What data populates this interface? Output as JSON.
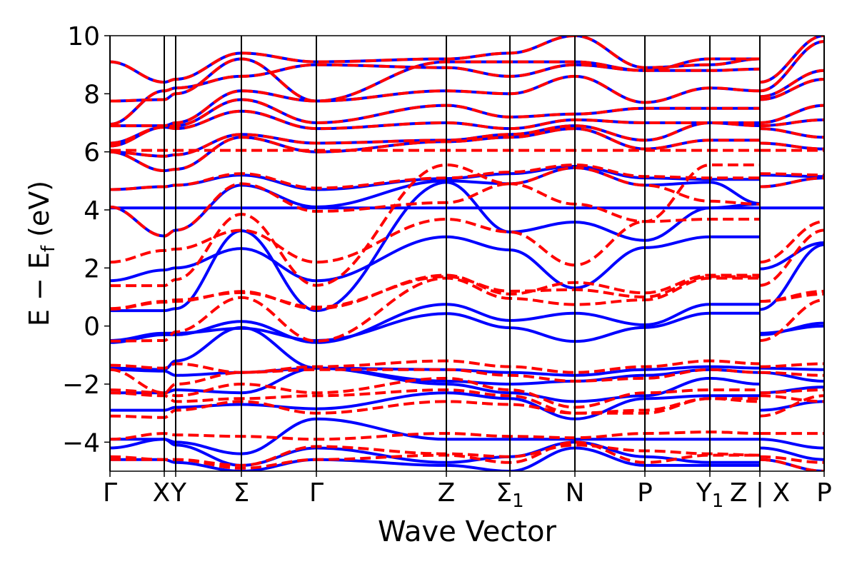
{
  "chart_data": {
    "type": "line",
    "title": "",
    "xlabel": "Wave Vector",
    "ylabel": "E − E",
    "ylabel_sub": "f",
    "ylabel_unit": " (eV)",
    "ylim": [
      -5,
      10
    ],
    "yticks": [
      -4,
      -2,
      0,
      2,
      4,
      6,
      8,
      10
    ],
    "ytick_labels": [
      "−4",
      "−2",
      "0",
      "2",
      "4",
      "6",
      "8",
      "10"
    ],
    "kpoints": [
      0,
      0.76,
      0.92,
      1.84,
      2.89,
      4.71,
      5.6,
      6.51,
      7.49,
      8.4,
      9.1,
      9.1,
      10.0
    ],
    "path_break_after_index": 10,
    "xticks": [
      {
        "k": 0,
        "text": "Γ",
        "sub": ""
      },
      {
        "k": 0.76,
        "text": "X",
        "sub": ""
      },
      {
        "k": 0.92,
        "text": "Y",
        "sub": ""
      },
      {
        "k": 1.84,
        "text": "Σ",
        "sub": ""
      },
      {
        "k": 2.89,
        "text": "Γ",
        "sub": ""
      },
      {
        "k": 4.71,
        "text": "Z",
        "sub": ""
      },
      {
        "k": 5.6,
        "text": "Σ",
        "sub": "1"
      },
      {
        "k": 6.51,
        "text": "N",
        "sub": ""
      },
      {
        "k": 7.49,
        "text": "P",
        "sub": ""
      },
      {
        "k": 8.4,
        "text": "Y",
        "sub": "1"
      },
      {
        "k": 9.1,
        "text": "Z | X",
        "sub": ""
      },
      {
        "k": 10.0,
        "text": "P",
        "sub": ""
      }
    ],
    "series": [
      {
        "name": "blue-solid",
        "color": "#0000ff",
        "style": "solid",
        "bands": [
          [
            9.1,
            8.4,
            8.5,
            9.4,
            9.1,
            9.2,
            9.4,
            10.0,
            8.9,
            9.0,
            9.2,
            8.4,
            10.0
          ],
          [
            7.75,
            7.8,
            8.0,
            9.2,
            7.75,
            9.1,
            9.1,
            9.1,
            8.8,
            9.2,
            9.2,
            8.1,
            9.8
          ],
          [
            6.95,
            8.1,
            8.2,
            8.6,
            9.0,
            8.9,
            8.6,
            9.0,
            8.8,
            8.8,
            8.85,
            7.9,
            8.8
          ],
          [
            6.9,
            6.9,
            7.0,
            8.1,
            7.75,
            8.1,
            8.0,
            8.6,
            7.7,
            8.2,
            8.1,
            7.8,
            8.5
          ],
          [
            6.3,
            6.85,
            6.9,
            7.8,
            7.0,
            7.6,
            7.2,
            7.3,
            7.5,
            7.5,
            7.5,
            7.0,
            7.6
          ],
          [
            6.2,
            6.85,
            6.8,
            7.4,
            6.8,
            7.0,
            6.8,
            7.1,
            7.0,
            7.0,
            7.0,
            6.9,
            7.1
          ],
          [
            6.0,
            5.85,
            5.9,
            6.6,
            6.3,
            6.4,
            6.6,
            6.9,
            6.4,
            7.0,
            6.9,
            6.8,
            6.5
          ],
          [
            6.0,
            5.35,
            5.4,
            6.5,
            6.0,
            6.35,
            6.5,
            6.8,
            6.1,
            6.4,
            6.4,
            6.3,
            6.1
          ],
          [
            4.7,
            4.8,
            4.85,
            5.2,
            4.7,
            5.08,
            5.25,
            5.5,
            5.1,
            5.05,
            5.05,
            5.2,
            5.15
          ],
          [
            4.1,
            3.1,
            3.3,
            4.85,
            4.1,
            5.0,
            4.9,
            5.45,
            4.85,
            4.95,
            4.22,
            4.8,
            5.1
          ],
          [
            4.07,
            4.07,
            4.07,
            4.07,
            4.07,
            4.07,
            4.07,
            4.07,
            4.07,
            4.07,
            4.07,
            4.07,
            4.07
          ],
          [
            1.56,
            1.93,
            2.0,
            2.67,
            1.56,
            3.07,
            2.62,
            1.31,
            2.7,
            3.07,
            3.07,
            1.97,
            2.87
          ],
          [
            0.53,
            0.53,
            0.6,
            3.28,
            0.53,
            4.95,
            3.24,
            3.58,
            2.95,
            4.07,
            4.2,
            0.57,
            2.8
          ],
          [
            -0.57,
            -0.3,
            -0.3,
            0.16,
            -0.57,
            0.75,
            0.19,
            0.44,
            0.04,
            0.75,
            0.75,
            -0.3,
            0.1
          ],
          [
            -0.5,
            -0.25,
            -0.25,
            -0.08,
            -0.5,
            0.43,
            -0.06,
            -0.53,
            -0.05,
            0.44,
            0.44,
            -0.25,
            0.0
          ],
          [
            -1.45,
            -1.5,
            -1.2,
            -0.05,
            -1.45,
            -1.5,
            -1.6,
            -1.7,
            -1.5,
            -1.4,
            -1.45,
            -1.45,
            -1.5
          ],
          [
            -1.5,
            -1.55,
            -1.7,
            -1.6,
            -1.45,
            -1.9,
            -2.0,
            -1.9,
            -1.7,
            -1.5,
            -1.6,
            -1.6,
            -1.9
          ],
          [
            -2.3,
            -2.3,
            -2.2,
            -2.3,
            -1.45,
            -2.0,
            -2.3,
            -2.6,
            -2.4,
            -1.8,
            -2.0,
            -2.3,
            -2.1
          ],
          [
            -2.9,
            -2.9,
            -2.8,
            -2.7,
            -2.85,
            -2.3,
            -2.5,
            -3.2,
            -2.5,
            -2.4,
            -2.4,
            -2.9,
            -2.6
          ],
          [
            -3.9,
            -3.9,
            -4.0,
            -4.4,
            -3.2,
            -3.9,
            -3.9,
            -3.9,
            -3.9,
            -3.9,
            -3.9,
            -3.9,
            -4.2
          ],
          [
            -4.2,
            -3.9,
            -4.1,
            -4.8,
            -4.2,
            -4.7,
            -4.5,
            -4.0,
            -4.5,
            -4.7,
            -4.7,
            -4.2,
            -4.6
          ],
          [
            -4.6,
            -4.6,
            -4.7,
            -5.0,
            -4.6,
            -4.8,
            -5.0,
            -4.2,
            -4.8,
            -4.8,
            -4.8,
            -4.6,
            -5.0
          ]
        ]
      },
      {
        "name": "red-dashed",
        "color": "#ff0000",
        "style": "dashed",
        "bands": [
          [
            9.1,
            8.4,
            8.5,
            9.4,
            9.1,
            9.2,
            9.4,
            10.0,
            8.9,
            9.0,
            9.2,
            8.4,
            10.0
          ],
          [
            7.75,
            7.8,
            8.0,
            9.2,
            7.75,
            9.1,
            9.1,
            9.1,
            8.8,
            9.2,
            9.2,
            8.1,
            9.8
          ],
          [
            6.95,
            8.1,
            8.2,
            8.6,
            9.0,
            8.9,
            8.6,
            9.0,
            8.8,
            8.8,
            8.85,
            7.9,
            8.8
          ],
          [
            6.9,
            6.9,
            7.0,
            8.1,
            7.75,
            8.1,
            8.0,
            8.6,
            7.7,
            8.2,
            8.1,
            7.8,
            8.5
          ],
          [
            6.3,
            6.85,
            6.9,
            7.8,
            7.0,
            7.6,
            7.2,
            7.3,
            7.5,
            7.5,
            7.5,
            7.0,
            7.6
          ],
          [
            6.2,
            6.85,
            6.8,
            7.4,
            6.8,
            7.0,
            6.8,
            7.1,
            7.0,
            7.0,
            7.0,
            6.9,
            7.1
          ],
          [
            6.0,
            5.85,
            5.9,
            6.6,
            6.3,
            6.4,
            6.6,
            6.9,
            6.4,
            7.0,
            6.9,
            6.8,
            6.5
          ],
          [
            6.0,
            5.35,
            5.4,
            6.5,
            6.0,
            6.35,
            6.5,
            6.8,
            6.1,
            6.4,
            6.4,
            6.3,
            6.1
          ],
          [
            6.05,
            6.05,
            6.05,
            6.05,
            6.05,
            6.05,
            6.05,
            6.05,
            6.05,
            6.05,
            6.05,
            6.05,
            6.05
          ],
          [
            4.7,
            4.8,
            4.85,
            5.25,
            4.75,
            5.1,
            5.3,
            5.55,
            5.15,
            5.1,
            5.1,
            5.25,
            5.2
          ],
          [
            4.1,
            3.1,
            3.3,
            4.9,
            3.95,
            4.25,
            4.9,
            5.45,
            4.85,
            4.3,
            4.2,
            4.8,
            5.1
          ],
          [
            2.2,
            2.6,
            2.65,
            3.3,
            2.2,
            3.68,
            3.24,
            2.1,
            3.6,
            3.68,
            3.68,
            2.2,
            3.6
          ],
          [
            1.39,
            1.39,
            1.6,
            3.85,
            1.4,
            5.55,
            4.9,
            4.2,
            3.6,
            5.55,
            5.55,
            1.4,
            3.3
          ],
          [
            0.58,
            0.82,
            0.85,
            1.19,
            0.6,
            1.75,
            1.1,
            1.5,
            1.14,
            1.75,
            1.75,
            0.85,
            1.2
          ],
          [
            0.6,
            0.85,
            0.9,
            1.15,
            0.65,
            1.7,
            1.2,
            1.25,
            1.0,
            1.7,
            1.7,
            0.85,
            1.1
          ],
          [
            -0.52,
            -0.5,
            -0.2,
            0.98,
            -0.52,
            1.65,
            0.95,
            0.74,
            0.9,
            1.65,
            1.65,
            -0.5,
            0.9
          ],
          [
            -1.35,
            -1.45,
            -1.3,
            -1.6,
            -1.4,
            -1.2,
            -1.4,
            -1.6,
            -1.4,
            -1.2,
            -1.3,
            -1.4,
            -1.3
          ],
          [
            -1.5,
            -2.3,
            -2.0,
            -1.6,
            -1.5,
            -1.5,
            -1.7,
            -1.9,
            -1.8,
            -1.5,
            -1.6,
            -1.6,
            -1.7
          ],
          [
            -2.2,
            -2.3,
            -2.4,
            -2.0,
            -2.3,
            -1.8,
            -2.2,
            -2.8,
            -2.3,
            -2.2,
            -2.2,
            -2.3,
            -2.2
          ],
          [
            -2.3,
            -2.4,
            -2.6,
            -2.5,
            -2.4,
            -2.2,
            -2.4,
            -3.0,
            -2.9,
            -2.5,
            -2.5,
            -2.4,
            -2.6
          ],
          [
            -3.1,
            -3.15,
            -2.9,
            -2.6,
            -3.0,
            -2.6,
            -2.7,
            -3.0,
            -3.0,
            -2.5,
            -2.6,
            -3.1,
            -2.4
          ],
          [
            -3.9,
            -3.7,
            -3.75,
            -3.8,
            -3.9,
            -3.7,
            -3.8,
            -3.85,
            -3.7,
            -3.65,
            -3.7,
            -3.7,
            -3.7
          ],
          [
            -4.5,
            -4.6,
            -4.6,
            -4.8,
            -4.15,
            -4.4,
            -4.5,
            -4.1,
            -4.3,
            -4.4,
            -4.45,
            -4.5,
            -4.7
          ],
          [
            -4.6,
            -4.6,
            -4.6,
            -4.9,
            -4.6,
            -4.45,
            -4.7,
            -4.0,
            -4.7,
            -4.45,
            -4.45,
            -4.6,
            -5.0
          ]
        ]
      }
    ]
  }
}
